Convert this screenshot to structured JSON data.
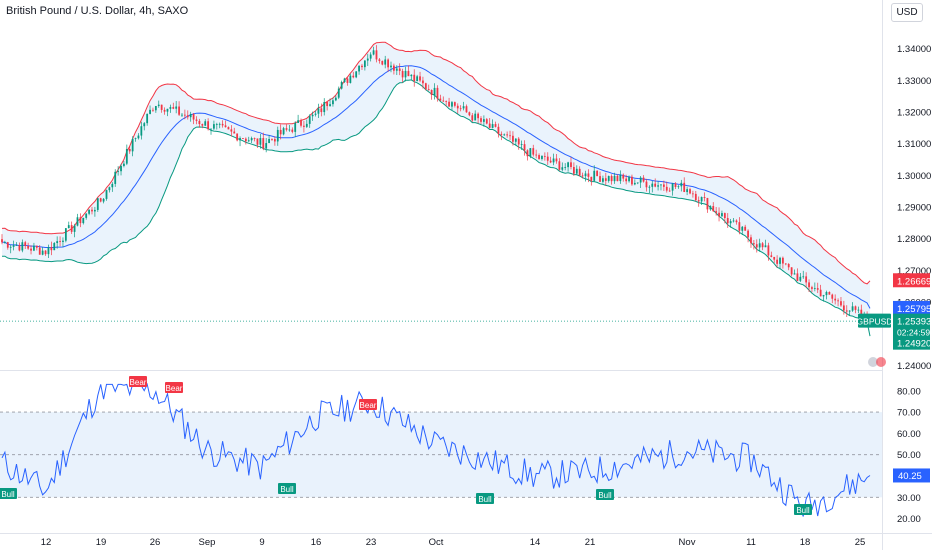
{
  "header": {
    "title": "British Pound / U.S. Dollar, 4h, SAXO",
    "currency": "USD"
  },
  "colors": {
    "up": "#089981",
    "down": "#f23645",
    "band_fill": "#e3effb",
    "middle": "#2962ff",
    "upper": "#f23645",
    "lower": "#089981",
    "rsi": "#2962ff",
    "rsi_band": "#e3effb",
    "pivot_bull": "#089981",
    "pivot_bear": "#f23645"
  },
  "price_axis": {
    "ticks": [
      "1.34000",
      "1.33000",
      "1.32000",
      "1.31000",
      "1.30000",
      "1.29000",
      "1.28000",
      "1.27000",
      "1.26000",
      "1.24000"
    ],
    "ylim": [
      1.2385,
      1.3475
    ],
    "labels": [
      {
        "value": "1.26669",
        "color": "#f23645",
        "y": 1.26669
      },
      {
        "value": "1.25795",
        "color": "#2962ff",
        "y": 1.25795
      },
      {
        "value": "GBPUSD",
        "color": "#089981",
        "y": 1.25393,
        "symbol": true
      },
      {
        "value": "1.25393",
        "color": "#089981",
        "y": 1.25393
      },
      {
        "value": "02:24:59",
        "color": "#089981",
        "y": 1.2506,
        "small": true
      },
      {
        "value": "1.24920",
        "color": "#089981",
        "y": 1.2492
      }
    ]
  },
  "time_axis": {
    "ticks": [
      "12",
      "19",
      "26",
      "Sep",
      "9",
      "16",
      "23",
      "Oct",
      "14",
      "21",
      "Nov",
      "11",
      "18",
      "25"
    ]
  },
  "rsi_axis": {
    "ticks": [
      "80.00",
      "70.00",
      "60.00",
      "50.00",
      "30.00",
      "20.00"
    ],
    "ylim": [
      17,
      86
    ],
    "current": "40.25"
  },
  "chart_data": {
    "type": "candlestick",
    "ylim": [
      1.2385,
      1.3475
    ],
    "last_price": 1.25393,
    "bollinger": {
      "upper_last": 1.26669,
      "middle_last": 1.25795,
      "lower_last": 1.2492
    },
    "key_closes": [
      {
        "t": "start",
        "v": 1.279
      },
      {
        "t": "Aug 12",
        "v": 1.276
      },
      {
        "t": "Aug 19",
        "v": 1.292
      },
      {
        "t": "Aug 26",
        "v": 1.323
      },
      {
        "t": "Sep",
        "v": 1.316
      },
      {
        "t": "Sep 9",
        "v": 1.31
      },
      {
        "t": "Sep 16",
        "v": 1.319
      },
      {
        "t": "Sep 23",
        "v": 1.339
      },
      {
        "t": "Oct",
        "v": 1.326
      },
      {
        "t": "Oct 14",
        "v": 1.306
      },
      {
        "t": "Oct 21",
        "v": 1.3
      },
      {
        "t": "Nov",
        "v": 1.296
      },
      {
        "t": "Nov 11",
        "v": 1.28
      },
      {
        "t": "Nov 18",
        "v": 1.266
      },
      {
        "t": "Nov 25",
        "v": 1.2539
      }
    ],
    "rsi": {
      "ylim": [
        17,
        86
      ],
      "overbought": 70,
      "middle": 50,
      "oversold": 30,
      "last": 40.25,
      "key_values": [
        {
          "t": "start",
          "v": 47
        },
        {
          "t": "Aug 12",
          "v": 33
        },
        {
          "t": "Aug 19",
          "v": 82
        },
        {
          "t": "Aug 26",
          "v": 80
        },
        {
          "t": "Sep",
          "v": 52
        },
        {
          "t": "Sep 9",
          "v": 44
        },
        {
          "t": "Sep 16",
          "v": 68
        },
        {
          "t": "Sep 23",
          "v": 75
        },
        {
          "t": "Oct",
          "v": 55
        },
        {
          "t": "Oct 14",
          "v": 40
        },
        {
          "t": "Oct 21",
          "v": 42
        },
        {
          "t": "Nov",
          "v": 52
        },
        {
          "t": "Nov 11",
          "v": 48
        },
        {
          "t": "Nov 18",
          "v": 25
        },
        {
          "t": "Nov 25",
          "v": 40.25
        }
      ]
    },
    "pivots": [
      {
        "label": "Bull",
        "kind": "bull"
      },
      {
        "label": "Bear",
        "kind": "bear"
      },
      {
        "label": "Bear",
        "kind": "bear"
      },
      {
        "label": "Bull",
        "kind": "bull"
      },
      {
        "label": "Bear",
        "kind": "bear"
      },
      {
        "label": "Bull",
        "kind": "bull"
      },
      {
        "label": "Bull",
        "kind": "bull"
      },
      {
        "label": "Bull",
        "kind": "bull"
      }
    ]
  }
}
